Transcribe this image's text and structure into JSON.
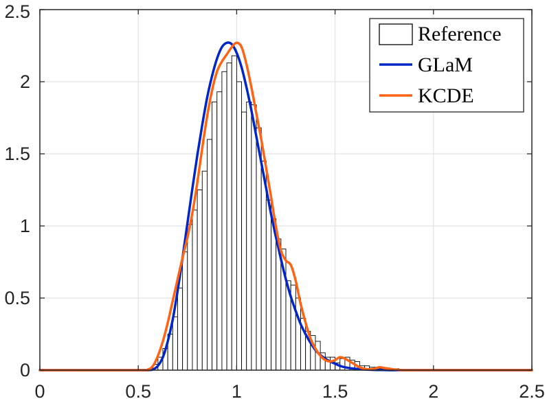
{
  "chart_data": {
    "type": "bar",
    "title": "",
    "xlabel": "",
    "ylabel": "",
    "xlim": [
      0,
      2.5
    ],
    "ylim": [
      0,
      2.5
    ],
    "grid": true,
    "legend_position": "top-right",
    "x_ticks": [
      "0",
      "0.5",
      "1",
      "1.5",
      "2",
      "2.5"
    ],
    "y_ticks": [
      "0",
      "0.5",
      "1",
      "1.5",
      "2",
      "2.5"
    ],
    "histogram": {
      "name": "Reference",
      "bin_width": 0.025,
      "bins": [
        {
          "x": 0.55,
          "y": 0.01
        },
        {
          "x": 0.575,
          "y": 0.04
        },
        {
          "x": 0.6,
          "y": 0.09
        },
        {
          "x": 0.625,
          "y": 0.15
        },
        {
          "x": 0.65,
          "y": 0.25
        },
        {
          "x": 0.675,
          "y": 0.37
        },
        {
          "x": 0.7,
          "y": 0.57
        },
        {
          "x": 0.725,
          "y": 0.82
        },
        {
          "x": 0.75,
          "y": 1.01
        },
        {
          "x": 0.775,
          "y": 1.11
        },
        {
          "x": 0.8,
          "y": 1.25
        },
        {
          "x": 0.825,
          "y": 1.38
        },
        {
          "x": 0.85,
          "y": 1.6
        },
        {
          "x": 0.875,
          "y": 1.86
        },
        {
          "x": 0.9,
          "y": 1.93
        },
        {
          "x": 0.925,
          "y": 2.07
        },
        {
          "x": 0.95,
          "y": 2.13
        },
        {
          "x": 0.975,
          "y": 2.18
        },
        {
          "x": 1.0,
          "y": 2.0
        },
        {
          "x": 1.025,
          "y": 1.79
        },
        {
          "x": 1.05,
          "y": 1.86
        },
        {
          "x": 1.075,
          "y": 1.84
        },
        {
          "x": 1.1,
          "y": 1.68
        },
        {
          "x": 1.125,
          "y": 1.45
        },
        {
          "x": 1.15,
          "y": 1.18
        },
        {
          "x": 1.175,
          "y": 1.05
        },
        {
          "x": 1.2,
          "y": 0.91
        },
        {
          "x": 1.225,
          "y": 0.84
        },
        {
          "x": 1.25,
          "y": 0.62
        },
        {
          "x": 1.275,
          "y": 0.59
        },
        {
          "x": 1.3,
          "y": 0.5
        },
        {
          "x": 1.325,
          "y": 0.36
        },
        {
          "x": 1.35,
          "y": 0.27
        },
        {
          "x": 1.375,
          "y": 0.24
        },
        {
          "x": 1.4,
          "y": 0.2
        },
        {
          "x": 1.425,
          "y": 0.12
        },
        {
          "x": 1.45,
          "y": 0.09
        },
        {
          "x": 1.475,
          "y": 0.09
        },
        {
          "x": 1.5,
          "y": 0.05
        },
        {
          "x": 1.525,
          "y": 0.08
        },
        {
          "x": 1.55,
          "y": 0.09
        },
        {
          "x": 1.575,
          "y": 0.07
        },
        {
          "x": 1.6,
          "y": 0.06
        },
        {
          "x": 1.625,
          "y": 0.03
        },
        {
          "x": 1.65,
          "y": 0.03
        },
        {
          "x": 1.675,
          "y": 0.02
        },
        {
          "x": 1.7,
          "y": 0.02
        },
        {
          "x": 1.725,
          "y": 0.01
        },
        {
          "x": 1.75,
          "y": 0.01
        },
        {
          "x": 1.775,
          "y": 0.01
        },
        {
          "x": 1.8,
          "y": 0.01
        }
      ]
    },
    "series": [
      {
        "name": "GLaM",
        "color": "#0026c7",
        "x": [
          0,
          0.5,
          0.55,
          0.575,
          0.6,
          0.625,
          0.65,
          0.675,
          0.7,
          0.725,
          0.75,
          0.775,
          0.8,
          0.825,
          0.85,
          0.875,
          0.9,
          0.925,
          0.95,
          0.975,
          1.0,
          1.025,
          1.05,
          1.075,
          1.1,
          1.125,
          1.15,
          1.175,
          1.2,
          1.225,
          1.25,
          1.275,
          1.3,
          1.325,
          1.35,
          1.375,
          1.4,
          1.425,
          1.45,
          1.475,
          1.5,
          1.525,
          1.55,
          1.6,
          1.65,
          1.7,
          1.75,
          1.8,
          2.0,
          2.5
        ],
        "y": [
          0,
          0,
          0.0,
          0.005,
          0.03,
          0.09,
          0.2,
          0.35,
          0.55,
          0.78,
          1.02,
          1.26,
          1.49,
          1.7,
          1.89,
          2.04,
          2.16,
          2.24,
          2.27,
          2.26,
          2.2,
          2.1,
          1.96,
          1.8,
          1.62,
          1.44,
          1.26,
          1.08,
          0.92,
          0.77,
          0.63,
          0.51,
          0.41,
          0.32,
          0.25,
          0.19,
          0.14,
          0.105,
          0.08,
          0.06,
          0.045,
          0.03,
          0.02,
          0.01,
          0.005,
          0.002,
          0.001,
          0,
          0,
          0
        ]
      },
      {
        "name": "KCDE",
        "color": "#ff6314",
        "x": [
          0,
          0.5,
          0.55,
          0.575,
          0.6,
          0.625,
          0.65,
          0.675,
          0.7,
          0.725,
          0.75,
          0.775,
          0.8,
          0.825,
          0.85,
          0.875,
          0.9,
          0.925,
          0.95,
          0.975,
          1.0,
          1.025,
          1.05,
          1.075,
          1.1,
          1.125,
          1.15,
          1.175,
          1.2,
          1.225,
          1.25,
          1.275,
          1.3,
          1.325,
          1.35,
          1.375,
          1.4,
          1.425,
          1.45,
          1.475,
          1.5,
          1.525,
          1.55,
          1.575,
          1.6,
          1.625,
          1.65,
          1.675,
          1.7,
          1.725,
          1.75,
          1.775,
          1.8,
          1.85,
          2.0,
          2.5
        ],
        "y": [
          0,
          0,
          0.005,
          0.03,
          0.1,
          0.2,
          0.33,
          0.48,
          0.63,
          0.78,
          0.92,
          1.09,
          1.3,
          1.54,
          1.76,
          1.94,
          2.07,
          2.14,
          2.19,
          2.24,
          2.27,
          2.24,
          2.12,
          1.96,
          1.78,
          1.6,
          1.4,
          1.2,
          0.99,
          0.83,
          0.76,
          0.73,
          0.62,
          0.46,
          0.33,
          0.22,
          0.15,
          0.1,
          0.07,
          0.06,
          0.07,
          0.09,
          0.08,
          0.06,
          0.04,
          0.02,
          0.01,
          0.005,
          0.01,
          0.02,
          0.015,
          0.01,
          0.005,
          0,
          0,
          0
        ]
      }
    ]
  }
}
